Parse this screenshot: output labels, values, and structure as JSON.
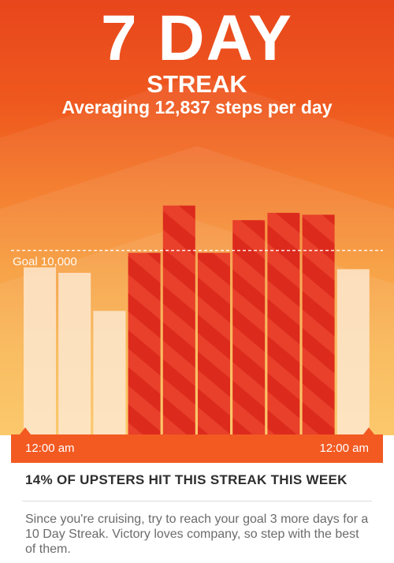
{
  "header": {
    "title": "7 DAY",
    "subtitle": "STREAK",
    "average": "Averaging 12,837 steps per day"
  },
  "chart_data": {
    "type": "bar",
    "categories": [
      "",
      "",
      "",
      "",
      "",
      "",
      "",
      "",
      "",
      ""
    ],
    "values": [
      9200,
      8900,
      6800,
      10000,
      12600,
      10000,
      11800,
      12200,
      12100,
      9100
    ],
    "goal": 10000,
    "goal_label": "Goal 10,000",
    "ylim": [
      0,
      13500
    ],
    "colors": {
      "met": "#dc2a1d",
      "met_stripe": "#e8402a",
      "unmet": "#fde7cf"
    }
  },
  "timeline": {
    "start": "12:00 am",
    "end": "12:00 am"
  },
  "card": {
    "stat": "14% OF UPSTERS HIT THIS STREAK THIS WEEK",
    "message": "Since you're cruising, try to reach your goal 3 more days for a 10 Day Streak.  Victory loves company, so step with the best of them."
  },
  "theme": {
    "accent": "#f25a22"
  }
}
